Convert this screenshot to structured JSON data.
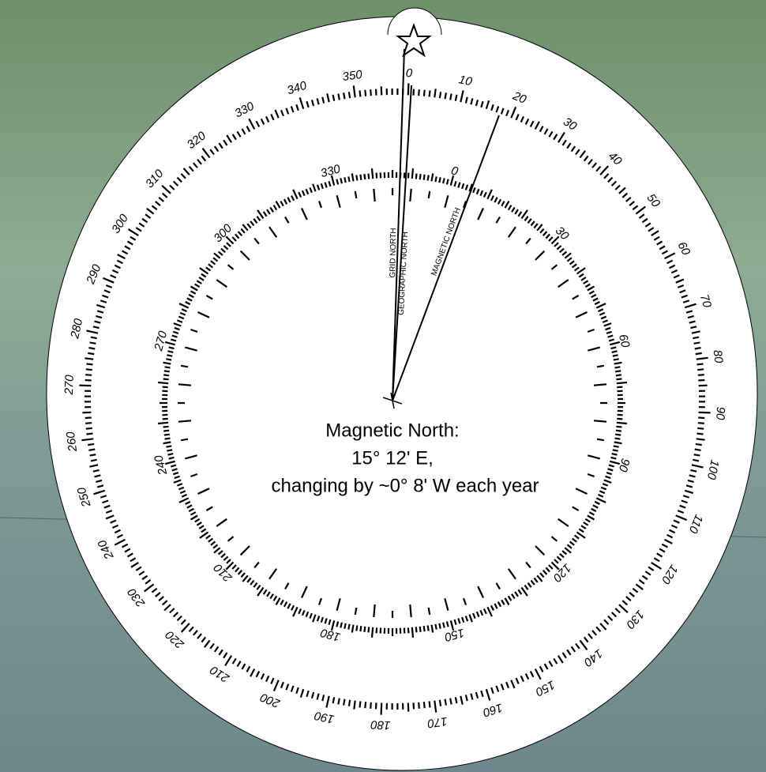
{
  "outer_ring": {
    "labels": [
      0,
      10,
      20,
      30,
      40,
      50,
      60,
      70,
      80,
      90,
      100,
      110,
      120,
      130,
      140,
      150,
      160,
      170,
      180,
      190,
      200,
      210,
      220,
      230,
      240,
      250,
      260,
      270,
      280,
      290,
      300,
      310,
      320,
      330,
      340,
      350
    ]
  },
  "inner_ring": {
    "labels": [
      0,
      30,
      60,
      90,
      120,
      150,
      180,
      210,
      240,
      270,
      300,
      330
    ]
  },
  "lines": [
    {
      "label": "GRID NORTH"
    },
    {
      "label": "GEOGRAPHIC NORTH"
    },
    {
      "label": "MAGNETIC NORTH"
    }
  ],
  "caption": {
    "lines": [
      "Magnetic North:",
      "15° 12' E,",
      "changing by ~0° 8' W each year"
    ]
  }
}
